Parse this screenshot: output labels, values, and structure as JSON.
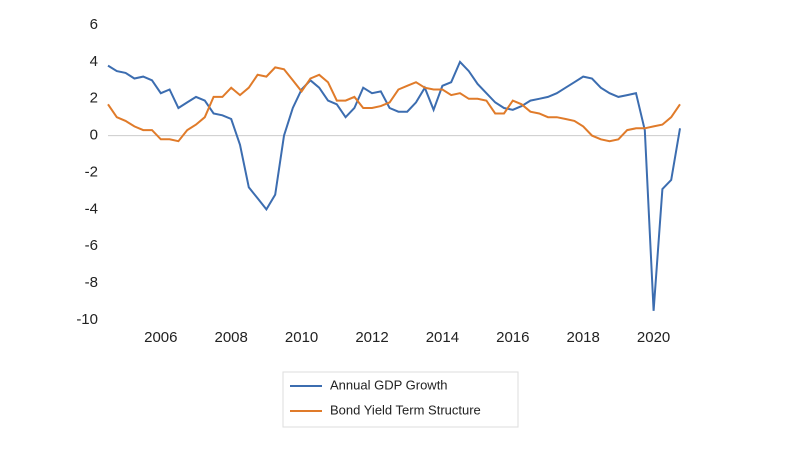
{
  "chart_data": {
    "type": "line",
    "x": [
      2004.5,
      2004.75,
      2005,
      2005.25,
      2005.5,
      2005.75,
      2006,
      2006.25,
      2006.5,
      2006.75,
      2007,
      2007.25,
      2007.5,
      2007.75,
      2008,
      2008.25,
      2008.5,
      2008.75,
      2009,
      2009.25,
      2009.5,
      2009.75,
      2010,
      2010.25,
      2010.5,
      2010.75,
      2011,
      2011.25,
      2011.5,
      2011.75,
      2012,
      2012.25,
      2012.5,
      2012.75,
      2013,
      2013.25,
      2013.5,
      2013.75,
      2014,
      2014.25,
      2014.5,
      2014.75,
      2015,
      2015.25,
      2015.5,
      2015.75,
      2016,
      2016.25,
      2016.5,
      2016.75,
      2017,
      2017.25,
      2017.5,
      2017.75,
      2018,
      2018.25,
      2018.5,
      2018.75,
      2019,
      2019.25,
      2019.5,
      2019.75,
      2020,
      2020.25,
      2020.5,
      2020.75
    ],
    "series": [
      {
        "name": "Annual GDP Growth",
        "color": "#3c6db0",
        "values": [
          3.8,
          3.5,
          3.4,
          3.1,
          3.2,
          3.0,
          2.3,
          2.5,
          1.5,
          1.8,
          2.1,
          1.9,
          1.2,
          1.1,
          0.9,
          -0.5,
          -2.8,
          -3.4,
          -4.0,
          -3.2,
          0,
          1.5,
          2.5,
          3.0,
          2.6,
          1.9,
          1.7,
          1.0,
          1.5,
          2.6,
          2.3,
          2.4,
          1.5,
          1.3,
          1.3,
          1.8,
          2.6,
          1.4,
          2.7,
          2.9,
          4.0,
          3.5,
          2.8,
          2.3,
          1.8,
          1.5,
          1.4,
          1.6,
          1.9,
          2.0,
          2.1,
          2.3,
          2.6,
          2.9,
          3.2,
          3.1,
          2.6,
          2.3,
          2.1,
          2.2,
          2.3,
          0.3,
          -9.5,
          -2.9,
          -2.4,
          0.4
        ]
      },
      {
        "name": "Bond Yield Term Structure",
        "color": "#e07b2a",
        "values": [
          1.7,
          1.0,
          0.8,
          0.5,
          0.3,
          0.3,
          -0.2,
          -0.2,
          -0.3,
          0.3,
          0.6,
          1.0,
          2.1,
          2.1,
          2.6,
          2.2,
          2.6,
          3.3,
          3.2,
          3.7,
          3.6,
          3.0,
          2.4,
          3.1,
          3.3,
          2.9,
          1.9,
          1.9,
          2.1,
          1.5,
          1.5,
          1.6,
          1.8,
          2.5,
          2.7,
          2.9,
          2.6,
          2.5,
          2.5,
          2.2,
          2.3,
          2.0,
          2.0,
          1.9,
          1.2,
          1.2,
          1.9,
          1.7,
          1.3,
          1.2,
          1.0,
          1.0,
          0.9,
          0.8,
          0.5,
          0.0,
          -0.2,
          -0.3,
          -0.2,
          0.3,
          0.4,
          0.4,
          0.5,
          0.6,
          1.0,
          1.7
        ]
      }
    ],
    "xlim": [
      2004.5,
      2020.75
    ],
    "xticks": [
      2006,
      2008,
      2010,
      2012,
      2014,
      2016,
      2018,
      2020
    ],
    "ylim": [
      -10,
      6
    ],
    "yticks": [
      -10,
      -8,
      -6,
      -4,
      -2,
      0,
      2,
      4,
      6
    ],
    "legend": "bottom"
  }
}
